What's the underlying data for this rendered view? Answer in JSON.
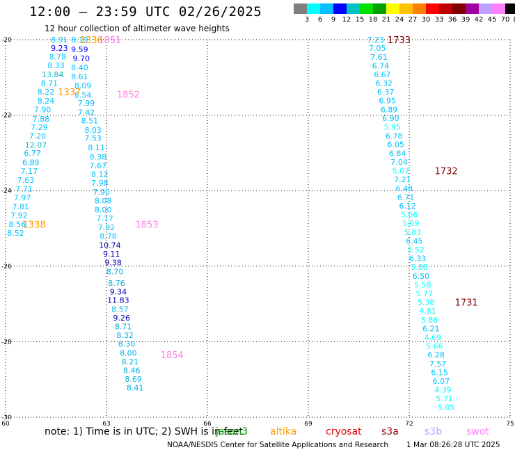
{
  "chart_data": {
    "type": "scatter",
    "title": "12:00 – 23:59 UTC 02/26/2025",
    "subtitle": "12 hour collection of altimeter wave heights",
    "xlim": [
      60,
      75
    ],
    "ylim": [
      -30,
      -20
    ],
    "x_ticks": [
      "60",
      "63",
      "66",
      "69",
      "72",
      "75"
    ],
    "y_ticks": [
      "-20",
      "-22",
      "-24",
      "-26",
      "-28",
      "-30"
    ],
    "grid": true,
    "colorbar": {
      "labels": [
        "3",
        "6",
        "9",
        "12",
        "15",
        "18",
        "21",
        "24",
        "27",
        "30",
        "33",
        "36",
        "39",
        "42",
        "45",
        "70",
        "(ft)"
      ],
      "colors": [
        "#808080",
        "#00ffff",
        "#00c0ff",
        "#0000ff",
        "#00c0c0",
        "#00e000",
        "#00a000",
        "#ffff00",
        "#ffc000",
        "#ff8000",
        "#ff0000",
        "#c00000",
        "#800000",
        "#a000a0",
        "#c0a0ff",
        "#ff80ff",
        "#000000"
      ]
    },
    "series": [
      {
        "name": "altika",
        "color": "#ff9900",
        "points": [
          [
            61.6,
            -20.0,
            "8.91"
          ],
          [
            62.2,
            -20.0,
            "8.19"
          ],
          [
            61.6,
            -20.22,
            "9.23"
          ],
          [
            62.2,
            -20.26,
            "9.59"
          ],
          [
            61.55,
            -20.45,
            "8.78"
          ],
          [
            62.25,
            -20.5,
            "9.70"
          ],
          [
            61.5,
            -20.68,
            "8.33"
          ],
          [
            62.2,
            -20.74,
            "8.40"
          ],
          [
            61.4,
            -20.92,
            "13.84"
          ],
          [
            62.2,
            -20.98,
            "8.61"
          ],
          [
            61.3,
            -21.15,
            "8.71"
          ],
          [
            62.3,
            -21.22,
            "8.09"
          ],
          [
            61.2,
            -21.38,
            "8.22"
          ],
          [
            62.3,
            -21.46,
            "8.54"
          ],
          [
            61.2,
            -21.62,
            "8.24"
          ],
          [
            62.4,
            -21.68,
            "7.99"
          ],
          [
            61.1,
            -21.85,
            "7.90"
          ],
          [
            62.4,
            -21.92,
            "7.42"
          ],
          [
            61.05,
            -22.1,
            "7.88"
          ],
          [
            62.5,
            -22.15,
            "8.51"
          ],
          [
            61.0,
            -22.32,
            "7.29"
          ],
          [
            62.6,
            -22.39,
            "8.03"
          ],
          [
            60.95,
            -22.55,
            "7.20"
          ],
          [
            62.6,
            -22.61,
            "7.53"
          ],
          [
            60.9,
            -22.79,
            "12.07"
          ],
          [
            62.7,
            -22.85,
            "8.11"
          ],
          [
            60.8,
            -23.0,
            "6.77"
          ],
          [
            62.75,
            -23.1,
            "8.38"
          ],
          [
            60.75,
            -23.25,
            "6.89"
          ],
          [
            62.75,
            -23.33,
            "7.67"
          ],
          [
            60.7,
            -23.48,
            "7.17"
          ],
          [
            62.8,
            -23.56,
            "8.12"
          ],
          [
            60.6,
            -23.72,
            "7.63"
          ],
          [
            62.8,
            -23.79,
            "7.98"
          ],
          [
            60.55,
            -23.95,
            "7.71"
          ],
          [
            62.85,
            -24.03,
            "7.90"
          ],
          [
            60.5,
            -24.18,
            "7.97"
          ],
          [
            62.9,
            -24.26,
            "8.08"
          ],
          [
            60.45,
            -24.42,
            "7.81"
          ],
          [
            62.9,
            -24.5,
            "8.00"
          ],
          [
            60.4,
            -24.65,
            "7.92"
          ],
          [
            62.95,
            -24.73,
            "7.17"
          ],
          [
            60.35,
            -24.89,
            "8.56"
          ],
          [
            63.0,
            -24.97,
            "7.92"
          ],
          [
            60.3,
            -25.12,
            "8.52"
          ],
          [
            63.05,
            -25.2,
            "8.78"
          ]
        ],
        "pass_labels": [
          [
            62.55,
            -20.0,
            "1336"
          ],
          [
            61.9,
            -21.38,
            "1337"
          ],
          [
            60.85,
            -24.89,
            "1338"
          ]
        ]
      },
      {
        "name": "jason3",
        "color": "#000090",
        "points": [
          [
            63.1,
            -25.44,
            "10.74"
          ],
          [
            63.15,
            -25.67,
            "9.11"
          ],
          [
            63.2,
            -25.9,
            "9.38"
          ],
          [
            63.25,
            -26.14,
            "8.70"
          ],
          [
            63.3,
            -26.45,
            "8.76"
          ],
          [
            63.35,
            -26.68,
            "9.34"
          ],
          [
            63.35,
            -26.9,
            "11.83"
          ],
          [
            63.4,
            -27.14,
            "8.57"
          ],
          [
            63.45,
            -27.37,
            "9.26"
          ],
          [
            63.5,
            -27.6,
            "8.71"
          ],
          [
            63.55,
            -27.83,
            "8.32"
          ],
          [
            63.6,
            -28.06,
            "8.30"
          ],
          [
            63.65,
            -28.3,
            "8.00"
          ],
          [
            63.7,
            -28.53,
            "8.21"
          ],
          [
            63.75,
            -28.76,
            "8.46"
          ],
          [
            63.8,
            -28.99,
            "8.69"
          ],
          [
            63.85,
            -29.22,
            "8.41"
          ]
        ]
      },
      {
        "name": "s3a",
        "color": "#00c0c0",
        "points": [
          [
            71.0,
            -20.0,
            "7.23"
          ],
          [
            71.05,
            -20.22,
            "7.05"
          ],
          [
            71.1,
            -20.46,
            "7.61"
          ],
          [
            71.15,
            -20.69,
            "6.74"
          ],
          [
            71.2,
            -20.92,
            "6.67"
          ],
          [
            71.25,
            -21.15,
            "6.32"
          ],
          [
            71.3,
            -21.38,
            "6.37"
          ],
          [
            71.35,
            -21.61,
            "6.95"
          ],
          [
            71.4,
            -21.85,
            "6.89"
          ],
          [
            71.45,
            -22.08,
            "6.90"
          ],
          [
            71.5,
            -22.31,
            "5.95"
          ],
          [
            71.55,
            -22.55,
            "6.78"
          ],
          [
            71.6,
            -22.77,
            "6.05"
          ],
          [
            71.65,
            -23.01,
            "6.84"
          ],
          [
            71.7,
            -23.24,
            "7.04"
          ],
          [
            71.75,
            -23.47,
            "5.07"
          ],
          [
            71.8,
            -23.7,
            "7.21"
          ],
          [
            71.85,
            -23.94,
            "6.48"
          ],
          [
            71.9,
            -24.17,
            "6.71"
          ],
          [
            71.95,
            -24.4,
            "6.12"
          ],
          [
            72.0,
            -24.63,
            "5.66"
          ],
          [
            72.05,
            -24.86,
            "5.69"
          ],
          [
            72.1,
            -25.1,
            "5.83"
          ],
          [
            72.15,
            -25.33,
            "6.45"
          ],
          [
            72.2,
            -25.56,
            "5.52"
          ],
          [
            72.25,
            -25.79,
            "6.33"
          ],
          [
            72.3,
            -26.02,
            "5.88"
          ],
          [
            72.35,
            -26.26,
            "6.50"
          ],
          [
            72.4,
            -26.49,
            "5.58"
          ],
          [
            72.45,
            -26.72,
            "5.77"
          ],
          [
            72.5,
            -26.95,
            "5.38"
          ],
          [
            72.55,
            -27.18,
            "4.81"
          ],
          [
            72.6,
            -27.42,
            "5.86"
          ],
          [
            72.65,
            -27.65,
            "6.21"
          ],
          [
            72.7,
            -27.88,
            "4.69"
          ],
          [
            72.75,
            -28.11,
            "5.66"
          ],
          [
            72.8,
            -28.34,
            "6.28"
          ],
          [
            72.85,
            -28.58,
            "7.57"
          ],
          [
            72.9,
            -28.81,
            "6.15"
          ],
          [
            72.95,
            -29.04,
            "6.07"
          ],
          [
            73.0,
            -29.27,
            "4.39"
          ],
          [
            73.05,
            -29.5,
            "5.71"
          ],
          [
            73.1,
            -29.73,
            "5.05"
          ]
        ],
        "pass_labels": [
          [
            71.7,
            -20.0,
            "1733"
          ],
          [
            73.1,
            -23.47,
            "1732"
          ],
          [
            73.7,
            -26.95,
            "1731"
          ]
        ]
      },
      {
        "name": "swot",
        "color": "#ff60e0",
        "points": [],
        "pass_labels": [
          [
            63.1,
            -20.0,
            "1851"
          ],
          [
            63.65,
            -21.45,
            "1852"
          ],
          [
            64.2,
            -24.89,
            "1853"
          ],
          [
            64.95,
            -28.34,
            "1854"
          ]
        ]
      }
    ]
  },
  "footer": {
    "note": "note:  1) Time is in UTC; 2) SWH is in feet",
    "legend": [
      {
        "label": "jason3",
        "color": "#009000"
      },
      {
        "label": "altika",
        "color": "#ff9900"
      },
      {
        "label": "cryosat",
        "color": "#e00000"
      },
      {
        "label": "s3a",
        "color": "#a00000"
      },
      {
        "label": "s3b",
        "color": "#c0a0ff"
      },
      {
        "label": "swot",
        "color": "#ff80ff"
      }
    ],
    "credit": "NOAA/NESDIS Center for Satellite Applications and Research",
    "date": "1 Mar 08:26:28 UTC 2025"
  }
}
